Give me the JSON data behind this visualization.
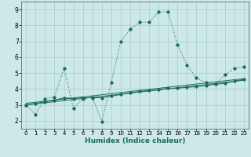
{
  "title": "",
  "xlabel": "Humidex (Indice chaleur)",
  "background_color": "#cce8e8",
  "grid_color": "#aacccc",
  "line_color": "#1a6b5a",
  "xlim": [
    -0.5,
    23.5
  ],
  "ylim": [
    1.5,
    9.5
  ],
  "yticks": [
    2,
    3,
    4,
    5,
    6,
    7,
    8,
    9
  ],
  "xticks": [
    0,
    1,
    2,
    3,
    4,
    5,
    6,
    7,
    8,
    9,
    10,
    11,
    12,
    13,
    14,
    15,
    16,
    17,
    18,
    19,
    20,
    21,
    22,
    23
  ],
  "series1_x": [
    0,
    1,
    2,
    3,
    4,
    5,
    6,
    7,
    8,
    9,
    10,
    11,
    12,
    13,
    14,
    15,
    16,
    17,
    18,
    19,
    20,
    21,
    22,
    23
  ],
  "series1_y": [
    3.0,
    2.4,
    3.4,
    3.5,
    5.3,
    2.8,
    3.4,
    3.5,
    1.95,
    4.4,
    7.0,
    7.75,
    8.2,
    8.2,
    8.85,
    8.85,
    6.8,
    5.5,
    4.7,
    4.4,
    4.3,
    4.9,
    5.3,
    5.4
  ],
  "series2_x": [
    0,
    1,
    2,
    3,
    4,
    5,
    6,
    7,
    8,
    9,
    10,
    11,
    12,
    13,
    14,
    15,
    16,
    17,
    18,
    19,
    20,
    21,
    22,
    23
  ],
  "series2_y": [
    3.0,
    3.1,
    3.2,
    3.3,
    3.45,
    3.4,
    3.45,
    3.45,
    3.45,
    3.55,
    3.65,
    3.75,
    3.85,
    3.9,
    3.95,
    4.05,
    4.05,
    4.1,
    4.15,
    4.2,
    4.3,
    4.35,
    4.5,
    4.6
  ],
  "series3_x": [
    0,
    23
  ],
  "series3_y": [
    3.0,
    4.55
  ],
  "series4_x": [
    0,
    23
  ],
  "series4_y": [
    3.1,
    4.65
  ],
  "xtick_fontsize": 5.0,
  "ytick_fontsize": 5.5,
  "xlabel_fontsize": 6.5
}
